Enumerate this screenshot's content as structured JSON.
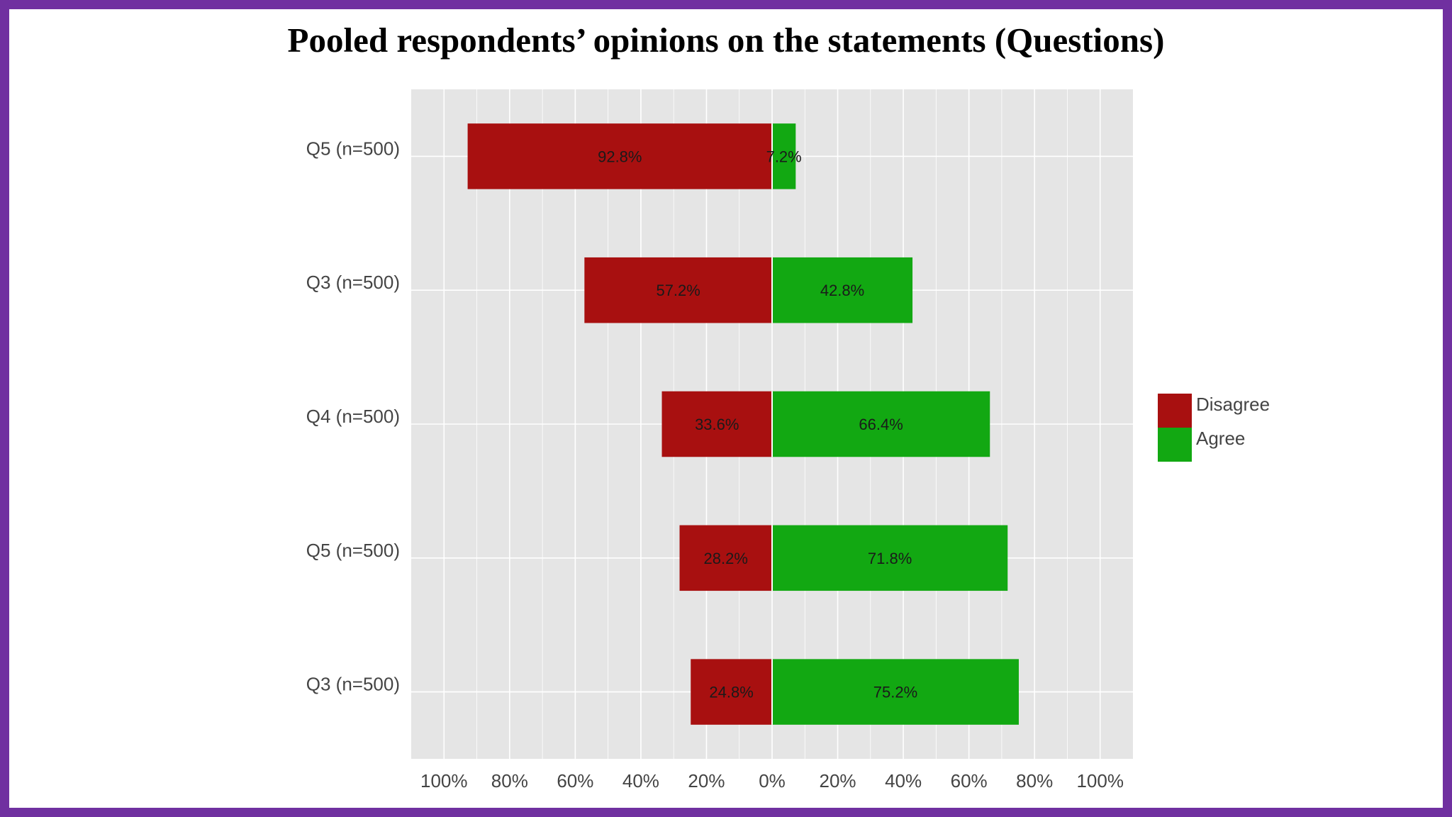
{
  "title": "Pooled respondents’ opinions on the statements (Questions)",
  "chart_data": {
    "type": "bar",
    "orientation": "horizontal",
    "stacking": "diverging",
    "categories": [
      "Q5 (n=500)",
      "Q3 (n=500)",
      "Q4 (n=500)",
      "Q5 (n=500)",
      "Q3 (n=500)"
    ],
    "series": [
      {
        "name": "Disagree",
        "color": "#a81010",
        "direction": "left",
        "values": [
          92.8,
          57.2,
          33.6,
          28.2,
          24.8
        ],
        "labels": [
          "92.8%",
          "57.2%",
          "33.6%",
          "28.2%",
          "24.8%"
        ]
      },
      {
        "name": "Agree",
        "color": "#12a812",
        "direction": "right",
        "values": [
          7.2,
          42.8,
          66.4,
          71.8,
          75.2
        ],
        "labels": [
          "7.2%",
          "42.8%",
          "66.4%",
          "71.8%",
          "75.2%"
        ]
      }
    ],
    "xlim": [
      -110,
      110
    ],
    "x_ticks": [
      -100,
      -80,
      -60,
      -40,
      -20,
      0,
      20,
      40,
      60,
      80,
      100
    ],
    "x_tick_labels": [
      "100%",
      "80%",
      "60%",
      "40%",
      "20%",
      "0%",
      "20%",
      "40%",
      "60%",
      "80%",
      "100%"
    ],
    "xlabel": "",
    "ylabel": "",
    "grid": true,
    "legend_position": "right",
    "plot_background": "#e5e5e5",
    "frame_color": "#7030a0"
  }
}
